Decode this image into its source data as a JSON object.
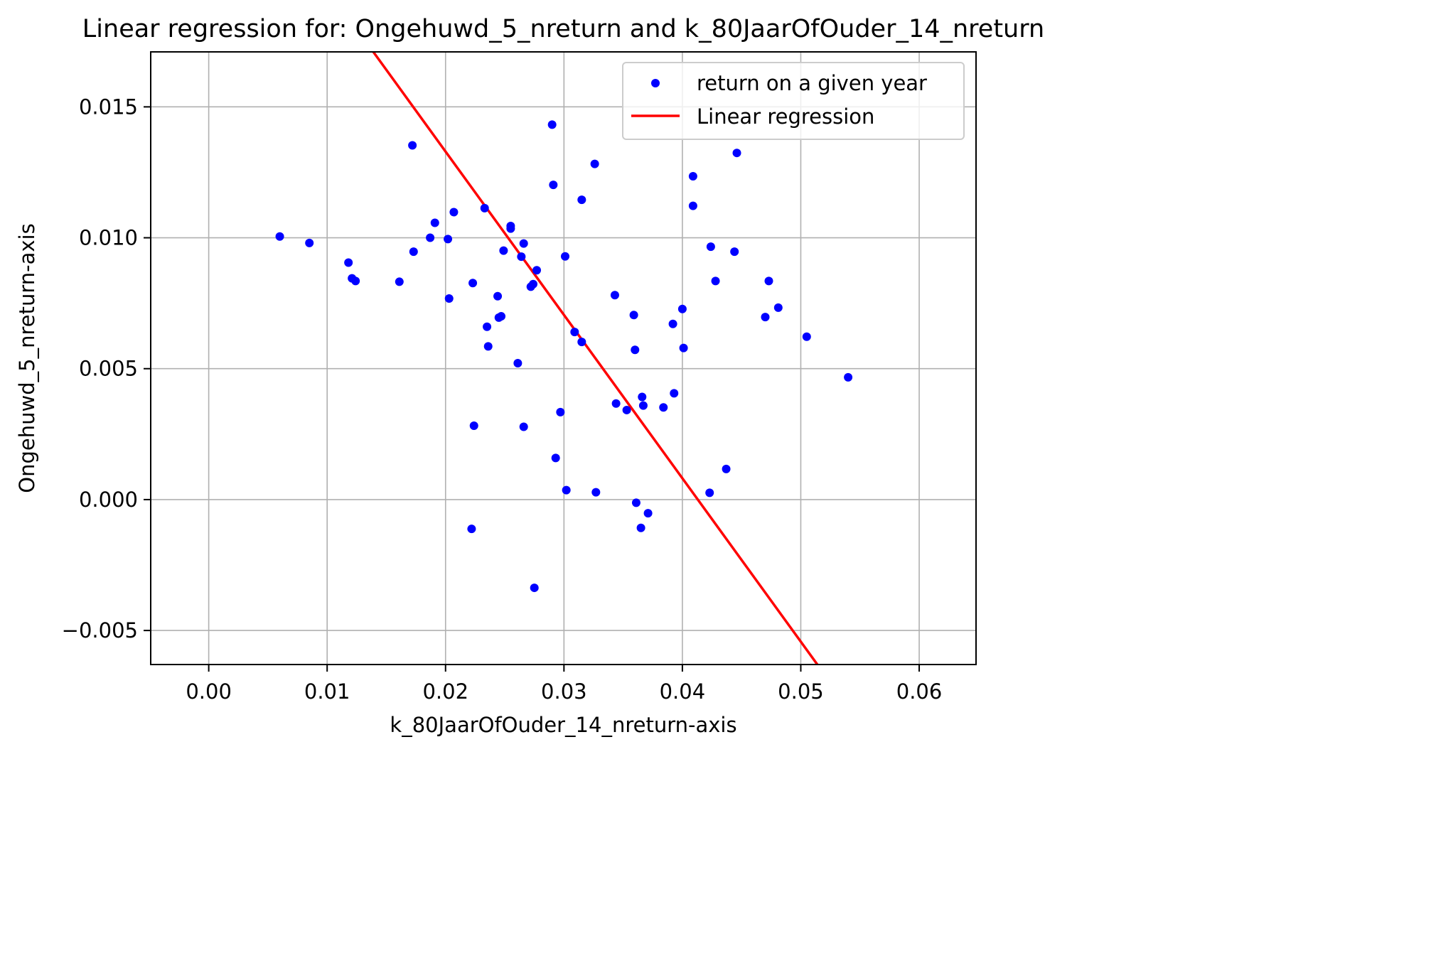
{
  "chart_data": {
    "type": "scatter",
    "title": "Linear regression for: Ongehuwd_5_nreturn and k_80JaarOfOuder_14_nreturn",
    "xlabel": "k_80JaarOfOuder_14_nreturn-axis",
    "ylabel": "Ongehuwd_5_nreturn-axis",
    "xlim": [
      -0.0049,
      0.0648
    ],
    "ylim": [
      -0.0063,
      0.0171
    ],
    "xticks": [
      0.0,
      0.01,
      0.02,
      0.03,
      0.04,
      0.05,
      0.06
    ],
    "xtick_labels": [
      "0.00",
      "0.01",
      "0.02",
      "0.03",
      "0.04",
      "0.05",
      "0.06"
    ],
    "yticks": [
      -0.005,
      0.0,
      0.005,
      0.01,
      0.015
    ],
    "ytick_labels": [
      "−0.005",
      "0.000",
      "0.005",
      "0.010",
      "0.015"
    ],
    "grid": true,
    "legend_position": "top-right",
    "series": [
      {
        "name": "return on a given year",
        "type": "scatter",
        "color": "#0000ff",
        "points": [
          [
            0.006,
            0.01005
          ],
          [
            0.0085,
            0.0098
          ],
          [
            0.0118,
            0.00905
          ],
          [
            0.0121,
            0.00845
          ],
          [
            0.0124,
            0.00835
          ],
          [
            0.0161,
            0.00832
          ],
          [
            0.0172,
            0.01353
          ],
          [
            0.0173,
            0.00947
          ],
          [
            0.0187,
            0.01
          ],
          [
            0.0191,
            0.01057
          ],
          [
            0.0202,
            0.00995
          ],
          [
            0.0203,
            0.00768
          ],
          [
            0.0207,
            0.01098
          ],
          [
            0.0222,
            -0.00112
          ],
          [
            0.0223,
            0.00827
          ],
          [
            0.0224,
            0.00282
          ],
          [
            0.0233,
            0.01113
          ],
          [
            0.0235,
            0.0066
          ],
          [
            0.0236,
            0.00585
          ],
          [
            0.0244,
            0.00777
          ],
          [
            0.0245,
            0.00695
          ],
          [
            0.0247,
            0.007
          ],
          [
            0.0249,
            0.00951
          ],
          [
            0.0255,
            0.01045
          ],
          [
            0.0255,
            0.01035
          ],
          [
            0.0261,
            0.00521
          ],
          [
            0.0264,
            0.00928
          ],
          [
            0.0266,
            0.00978
          ],
          [
            0.0266,
            0.00278
          ],
          [
            0.0272,
            0.00813
          ],
          [
            0.0274,
            0.00823
          ],
          [
            0.0275,
            -0.00337
          ],
          [
            0.0277,
            0.00876
          ],
          [
            0.029,
            0.01432
          ],
          [
            0.0291,
            0.01202
          ],
          [
            0.0293,
            0.00159
          ],
          [
            0.0297,
            0.00334
          ],
          [
            0.0301,
            0.00929
          ],
          [
            0.0302,
            0.00036
          ],
          [
            0.0309,
            0.0064
          ],
          [
            0.0315,
            0.01145
          ],
          [
            0.0315,
            0.00602
          ],
          [
            0.0326,
            0.01282
          ],
          [
            0.0327,
            0.00028
          ],
          [
            0.0343,
            0.00781
          ],
          [
            0.0344,
            0.00367
          ],
          [
            0.0353,
            0.00342
          ],
          [
            0.0359,
            0.00705
          ],
          [
            0.036,
            0.00572
          ],
          [
            0.0361,
            -0.00012
          ],
          [
            0.0365,
            -0.00108
          ],
          [
            0.0366,
            0.00392
          ],
          [
            0.0367,
            0.00359
          ],
          [
            0.0371,
            -0.00052
          ],
          [
            0.0384,
            0.00352
          ],
          [
            0.0392,
            0.00671
          ],
          [
            0.0393,
            0.00406
          ],
          [
            0.04,
            0.00728
          ],
          [
            0.0401,
            0.00579
          ],
          [
            0.0409,
            0.01235
          ],
          [
            0.0409,
            0.01122
          ],
          [
            0.0423,
            0.00026
          ],
          [
            0.0424,
            0.00966
          ],
          [
            0.0428,
            0.00835
          ],
          [
            0.0437,
            0.00117
          ],
          [
            0.0444,
            0.00947
          ],
          [
            0.0446,
            0.01324
          ],
          [
            0.047,
            0.00697
          ],
          [
            0.0473,
            0.00835
          ],
          [
            0.0481,
            0.00733
          ],
          [
            0.0505,
            0.00622
          ],
          [
            0.054,
            0.00467
          ]
        ]
      },
      {
        "name": "Linear regression",
        "type": "line",
        "color": "#ff0000",
        "points": [
          [
            0.0139,
            0.0171
          ],
          [
            0.0514,
            -0.0063
          ]
        ]
      }
    ]
  }
}
